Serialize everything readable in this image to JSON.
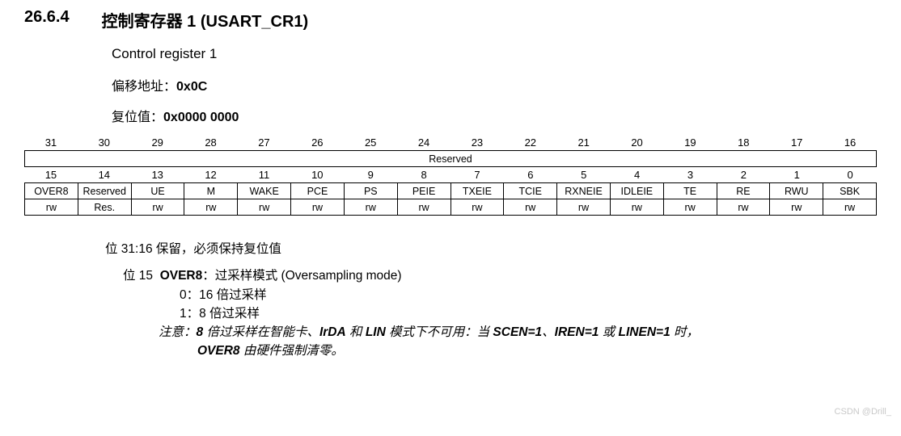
{
  "heading": {
    "number": "26.6.4",
    "title": "控制寄存器 1 (USART_CR1)"
  },
  "subtitle": "Control register 1",
  "offset": {
    "label": "偏移地址：",
    "value": "0x0C"
  },
  "reset": {
    "label": "复位值：",
    "value": "0x0000 0000"
  },
  "register": {
    "high_bits": [
      "31",
      "30",
      "29",
      "28",
      "27",
      "26",
      "25",
      "24",
      "23",
      "22",
      "21",
      "20",
      "19",
      "18",
      "17",
      "16"
    ],
    "high_reserved": "Reserved",
    "low_bits": [
      "15",
      "14",
      "13",
      "12",
      "11",
      "10",
      "9",
      "8",
      "7",
      "6",
      "5",
      "4",
      "3",
      "2",
      "1",
      "0"
    ],
    "names": [
      "OVER8",
      "Reserved",
      "UE",
      "M",
      "WAKE",
      "PCE",
      "PS",
      "PEIE",
      "TXEIE",
      "TCIE",
      "RXNEIE",
      "IDLEIE",
      "TE",
      "RE",
      "RWU",
      "SBK"
    ],
    "access": [
      "rw",
      "Res.",
      "rw",
      "rw",
      "rw",
      "rw",
      "rw",
      "rw",
      "rw",
      "rw",
      "rw",
      "rw",
      "rw",
      "rw",
      "rw",
      "rw"
    ]
  },
  "desc": {
    "bit3116": "位 31:16  保留，必须保持复位值",
    "bit15_label": "位 15",
    "bit15_name": "OVER8",
    "bit15_text": "：过采样模式 (Oversampling mode)",
    "v0": "0：16 倍过采样",
    "v1": "1：8 倍过采样",
    "note_prefix": "注意：",
    "note_b1": "8",
    "note_t1": " 倍过采样在智能卡、",
    "note_b2": "IrDA",
    "note_t2": " 和 ",
    "note_b3": "LIN",
    "note_t3": " 模式下不可用：当 ",
    "note_b4": "SCEN=1",
    "note_t4": "、",
    "note_b5": "IREN=1",
    "note_t5": " 或 ",
    "note_b6": "LINEN=1",
    "note_t6": " 时，",
    "note_line2_b": "OVER8",
    "note_line2_t": " 由硬件强制清零。"
  },
  "watermark": "CSDN @Drill_"
}
